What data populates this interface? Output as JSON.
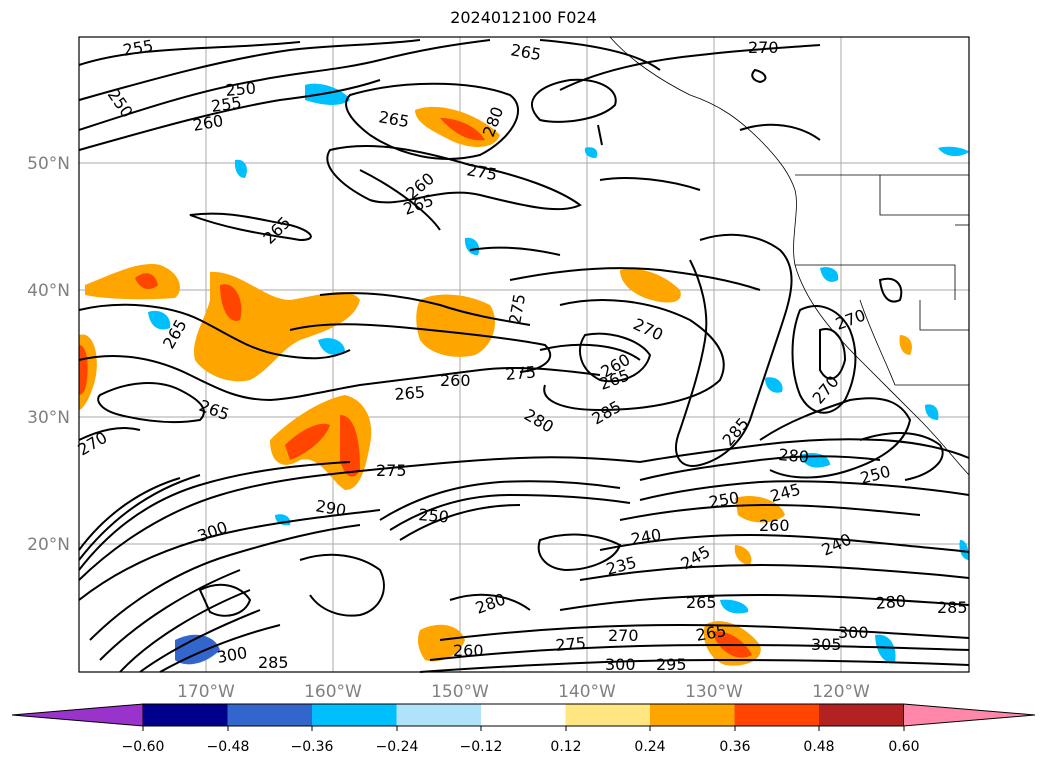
{
  "title": "2024012100 F024",
  "map": {
    "lat_labels": [
      "50°N",
      "40°N",
      "30°N",
      "20°N"
    ],
    "lon_labels": [
      "170°W",
      "160°W",
      "150°W",
      "140°W",
      "130°W",
      "120°W"
    ],
    "contour_labels": [
      {
        "text": "255"
      },
      {
        "text": "250"
      },
      {
        "text": "250"
      },
      {
        "text": "255"
      },
      {
        "text": "260"
      },
      {
        "text": "265"
      },
      {
        "text": "270"
      },
      {
        "text": "265"
      },
      {
        "text": "280"
      },
      {
        "text": "275"
      },
      {
        "text": "260"
      },
      {
        "text": "265"
      },
      {
        "text": "265"
      },
      {
        "text": "275"
      },
      {
        "text": "270"
      },
      {
        "text": "265"
      },
      {
        "text": "260"
      },
      {
        "text": "265"
      },
      {
        "text": "265"
      },
      {
        "text": "260"
      },
      {
        "text": "275"
      },
      {
        "text": "280"
      },
      {
        "text": "285"
      },
      {
        "text": "270"
      },
      {
        "text": "270"
      },
      {
        "text": "265"
      },
      {
        "text": "270"
      },
      {
        "text": "275"
      },
      {
        "text": "285"
      },
      {
        "text": "290"
      },
      {
        "text": "250"
      },
      {
        "text": "300"
      },
      {
        "text": "240"
      },
      {
        "text": "235"
      },
      {
        "text": "250"
      },
      {
        "text": "245"
      },
      {
        "text": "260"
      },
      {
        "text": "245"
      },
      {
        "text": "265"
      },
      {
        "text": "280"
      },
      {
        "text": "240"
      },
      {
        "text": "250"
      },
      {
        "text": "300"
      },
      {
        "text": "280"
      },
      {
        "text": "280"
      },
      {
        "text": "260"
      },
      {
        "text": "270"
      },
      {
        "text": "275"
      },
      {
        "text": "300"
      },
      {
        "text": "295"
      },
      {
        "text": "265"
      },
      {
        "text": "300"
      },
      {
        "text": "305"
      },
      {
        "text": "285"
      },
      {
        "text": "285"
      }
    ]
  },
  "colorbar": {
    "tick_labels": [
      "−0.60",
      "−0.48",
      "−0.36",
      "−0.24",
      "−0.12",
      "0.12",
      "0.24",
      "0.36",
      "0.48",
      "0.60"
    ],
    "colors": [
      "#9933cc",
      "#00008b",
      "#3366cc",
      "#00bfff",
      "#aee3fa",
      "#ffffff",
      "#ffe680",
      "#ffa500",
      "#ff4500",
      "#b22222",
      "#ff88aa"
    ]
  }
}
